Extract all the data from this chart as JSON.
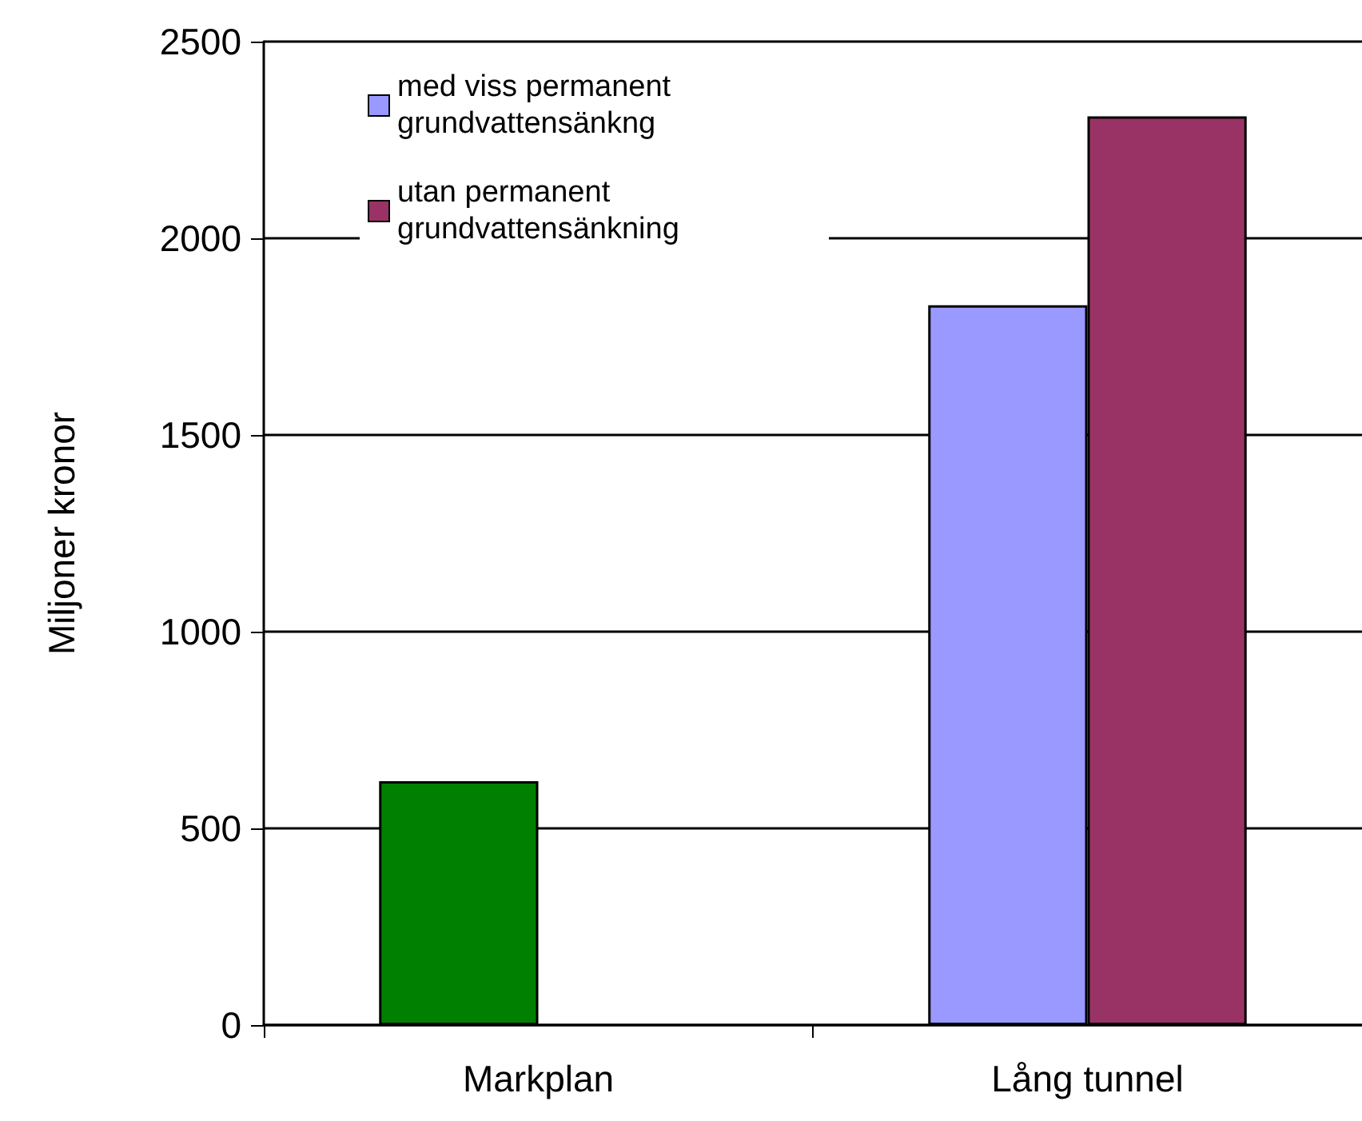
{
  "chart_data": {
    "type": "bar",
    "ylabel": "Miljoner kronor",
    "categories": [
      "Markplan",
      "Lång tunnel"
    ],
    "series": [
      {
        "name": "med viss permanent grundvattensänkng",
        "color": "#9999ff",
        "colors": [
          "#008000",
          "#9999ff"
        ],
        "values": [
          620,
          1830
        ]
      },
      {
        "name": "utan permanent grundvattensänkning",
        "color": "#993366",
        "values": [
          null,
          2310
        ]
      }
    ],
    "ylim": [
      0,
      2500
    ],
    "yticks": [
      0,
      500,
      1000,
      1500,
      2000,
      2500
    ],
    "grid": "y",
    "legend": "top left"
  }
}
